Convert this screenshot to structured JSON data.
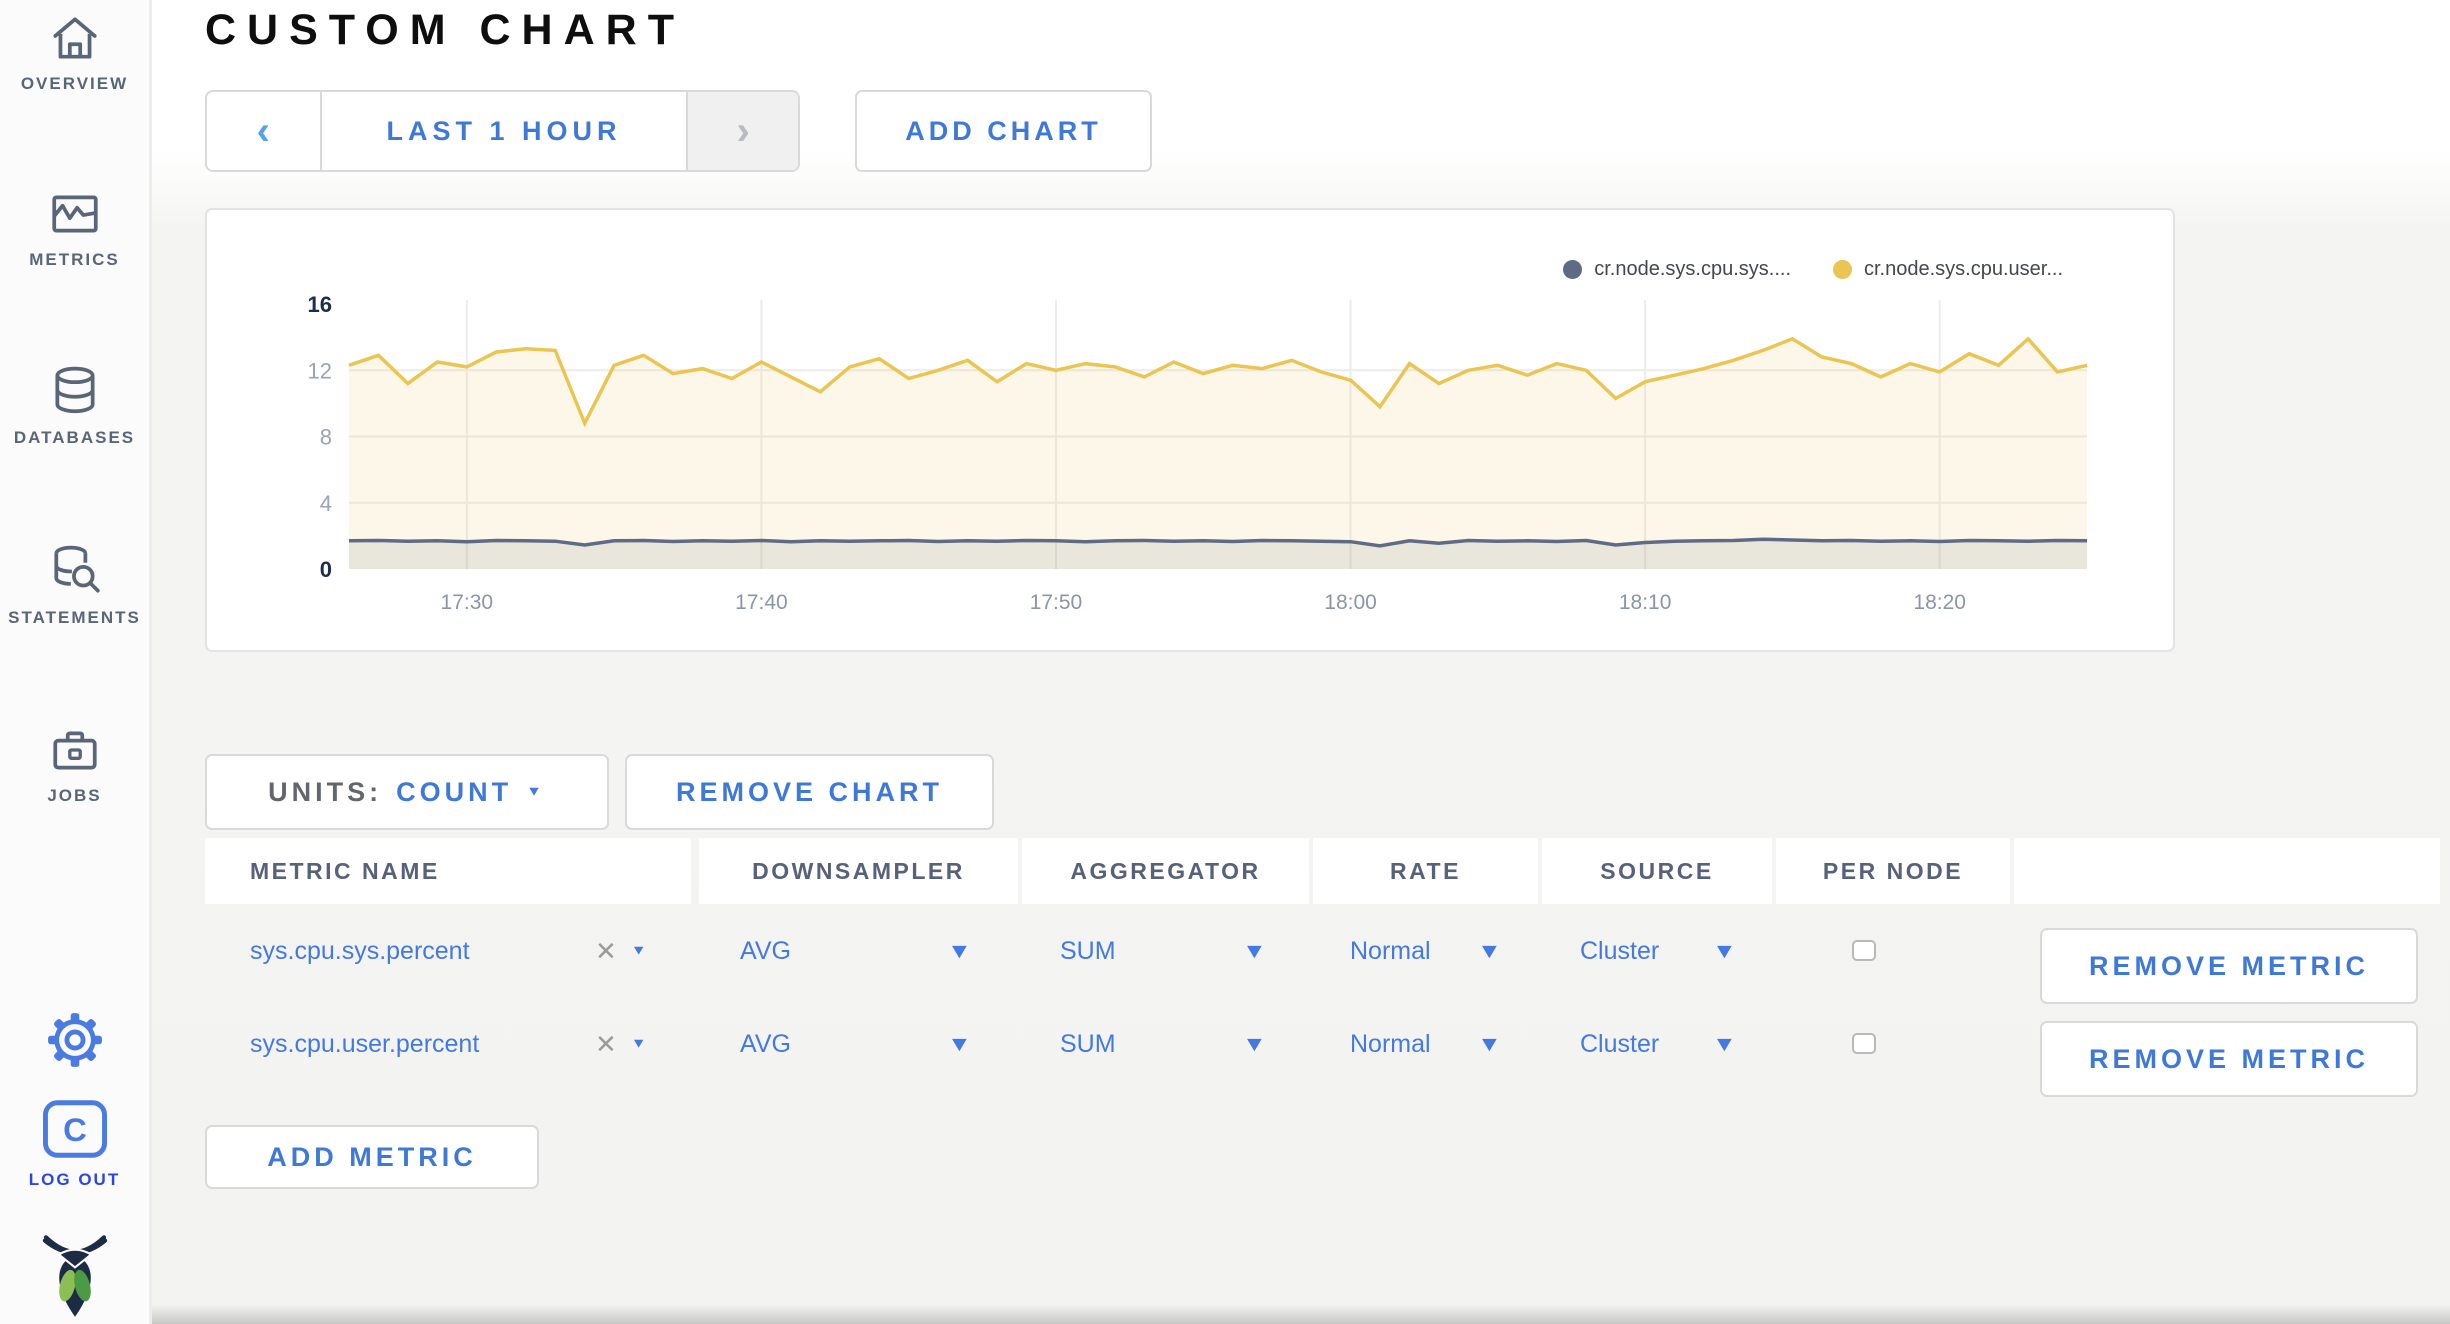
{
  "colors": {
    "accent_blue": "#4479e2",
    "link_blue": "#3f79d8",
    "sidebar_slate": "#5a6578",
    "logout_blue": "#2b46e8",
    "series_sys_color": "#5f6b85",
    "series_user_color": "#eac552",
    "axis_extreme": "#1e2d4d",
    "axis_mid": "#9aa3b5"
  },
  "sidebar": {
    "items": [
      {
        "label": "OVERVIEW",
        "icon": "home-icon"
      },
      {
        "label": "METRICS",
        "icon": "metrics-icon"
      },
      {
        "label": "DATABASES",
        "icon": "databases-icon"
      },
      {
        "label": "STATEMENTS",
        "icon": "statements-icon"
      },
      {
        "label": "JOBS",
        "icon": "jobs-icon"
      }
    ],
    "logout_label": "LOG OUT"
  },
  "header": {
    "title": "CUSTOM CHART"
  },
  "toolbar": {
    "prev_label": "‹",
    "range_label": "LAST 1 HOUR",
    "next_label": "›",
    "add_chart_label": "ADD CHART"
  },
  "chart_data": {
    "type": "line",
    "title": "",
    "xlabel": "",
    "ylabel": "",
    "ylim": [
      0,
      16
    ],
    "yticks": [
      0,
      4,
      8,
      12,
      16
    ],
    "grid": true,
    "legend_position": "top-right",
    "x_minutes_span": 59,
    "xticks": [
      {
        "m": 4,
        "label": "17:30"
      },
      {
        "m": 14,
        "label": "17:40"
      },
      {
        "m": 24,
        "label": "17:50"
      },
      {
        "m": 34,
        "label": "18:00"
      },
      {
        "m": 44,
        "label": "18:10"
      },
      {
        "m": 54,
        "label": "18:20"
      }
    ],
    "series": [
      {
        "name": "cr.node.sys.cpu.sys....",
        "color": "#5f6b85",
        "fill": "rgba(95,107,133,0.12)",
        "values": [
          1.7,
          1.72,
          1.68,
          1.7,
          1.65,
          1.72,
          1.7,
          1.68,
          1.45,
          1.7,
          1.72,
          1.66,
          1.7,
          1.68,
          1.72,
          1.65,
          1.7,
          1.68,
          1.7,
          1.72,
          1.66,
          1.7,
          1.68,
          1.72,
          1.7,
          1.65,
          1.7,
          1.72,
          1.68,
          1.7,
          1.66,
          1.72,
          1.7,
          1.68,
          1.65,
          1.4,
          1.7,
          1.55,
          1.72,
          1.68,
          1.7,
          1.66,
          1.72,
          1.45,
          1.6,
          1.68,
          1.7,
          1.72,
          1.8,
          1.75,
          1.7,
          1.72,
          1.68,
          1.7,
          1.66,
          1.72,
          1.7,
          1.68,
          1.72,
          1.7
        ]
      },
      {
        "name": "cr.node.sys.cpu.user...",
        "color": "#eac552",
        "fill": "rgba(234,197,82,0.13)",
        "values": [
          12.3,
          12.9,
          11.2,
          12.5,
          12.2,
          13.1,
          13.3,
          13.2,
          8.8,
          12.3,
          12.9,
          11.8,
          12.1,
          11.5,
          12.5,
          11.6,
          10.7,
          12.2,
          12.7,
          11.5,
          12.0,
          12.6,
          11.3,
          12.4,
          12.0,
          12.4,
          12.2,
          11.6,
          12.5,
          11.8,
          12.3,
          12.1,
          12.6,
          11.9,
          11.4,
          9.8,
          12.4,
          11.2,
          12.0,
          12.3,
          11.7,
          12.4,
          12.0,
          10.3,
          11.3,
          11.7,
          12.1,
          12.6,
          13.2,
          13.9,
          12.8,
          12.4,
          11.6,
          12.4,
          11.9,
          13.0,
          12.3,
          13.9,
          11.9,
          12.3
        ]
      }
    ]
  },
  "units_bar": {
    "units_label": "UNITS:",
    "units_value": "COUNT",
    "remove_chart_label": "REMOVE CHART"
  },
  "table": {
    "columns": [
      "METRIC NAME",
      "DOWNSAMPLER",
      "AGGREGATOR",
      "RATE",
      "SOURCE",
      "PER NODE",
      ""
    ],
    "rows": [
      {
        "metric_name": "sys.cpu.sys.percent",
        "clear_glyph": "✕",
        "downsampler": "AVG",
        "aggregator": "SUM",
        "rate": "Normal",
        "source": "Cluster",
        "per_node_checked": false,
        "remove_label": "REMOVE METRIC"
      },
      {
        "metric_name": "sys.cpu.user.percent",
        "clear_glyph": "✕",
        "downsampler": "AVG",
        "aggregator": "SUM",
        "rate": "Normal",
        "source": "Cluster",
        "per_node_checked": false,
        "remove_label": "REMOVE METRIC"
      }
    ]
  },
  "add_metric_label": "ADD METRIC"
}
